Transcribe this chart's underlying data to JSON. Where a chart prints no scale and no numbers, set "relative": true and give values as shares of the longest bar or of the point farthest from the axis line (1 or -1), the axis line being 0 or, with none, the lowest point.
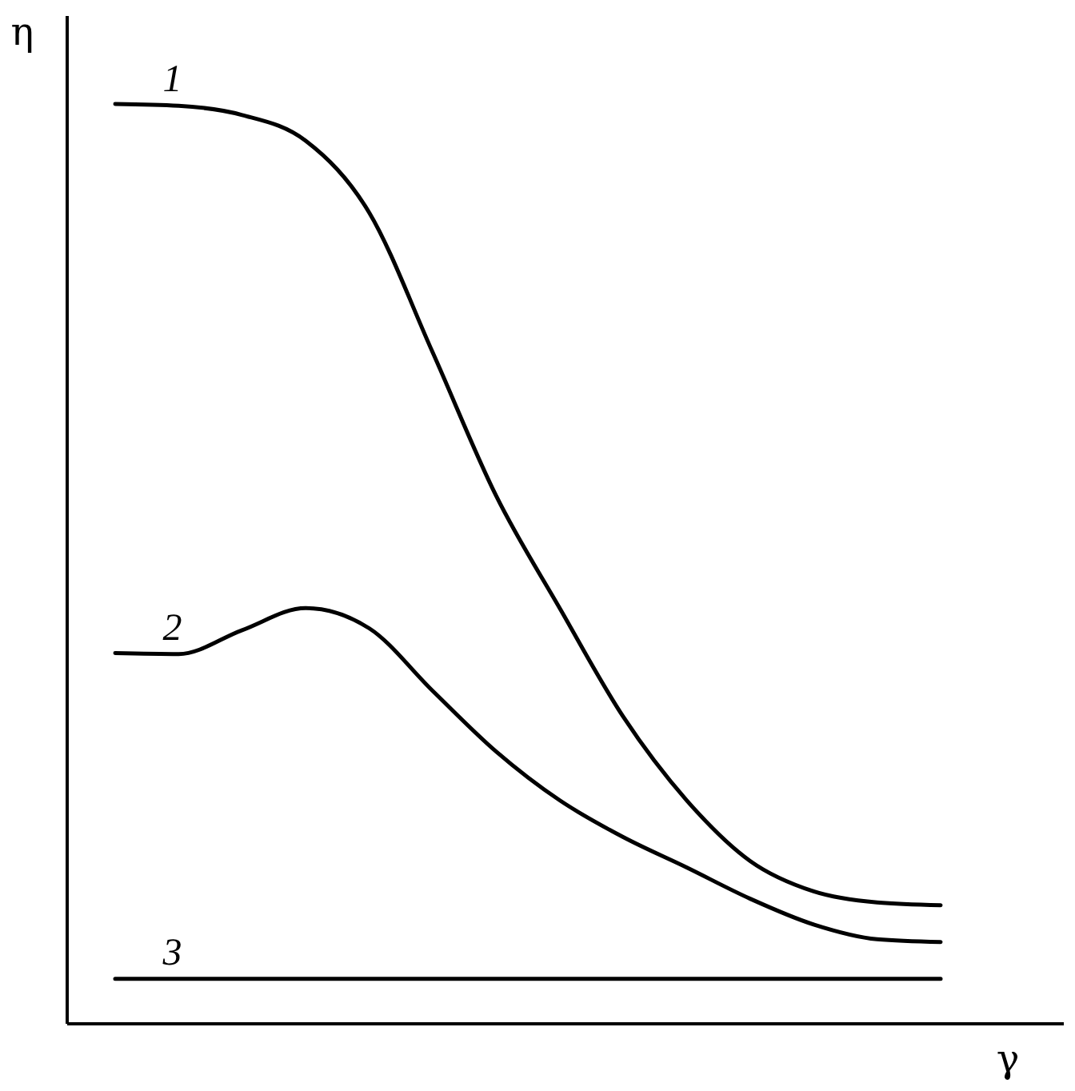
{
  "chart_data": {
    "type": "line",
    "relative": true,
    "xlabel": "γ",
    "ylabel": "η",
    "categories": [
      null,
      null,
      null,
      null,
      null,
      null,
      null,
      null,
      null,
      null,
      null,
      null,
      null,
      null
    ],
    "line_style": "solid",
    "marker": "none",
    "series": [
      {
        "name": "1",
        "color": "#000000",
        "values": [
          1.0,
          0.998,
          0.988,
          0.96,
          0.882,
          0.73,
          0.574,
          0.452,
          0.334,
          0.243,
          0.177,
          0.144,
          0.132,
          0.129
        ]
      },
      {
        "name": "2",
        "color": "#000000",
        "values": [
          0.403,
          0.402,
          0.428,
          0.452,
          0.43,
          0.362,
          0.296,
          0.243,
          0.203,
          0.17,
          0.136,
          0.108,
          0.092,
          0.089
        ]
      },
      {
        "name": "3",
        "color": "#000000",
        "values": [
          0.049,
          0.049,
          0.049,
          0.049,
          0.049,
          0.049,
          0.049,
          0.049,
          0.049,
          0.049,
          0.049,
          0.049,
          0.049,
          0.049
        ]
      }
    ]
  }
}
